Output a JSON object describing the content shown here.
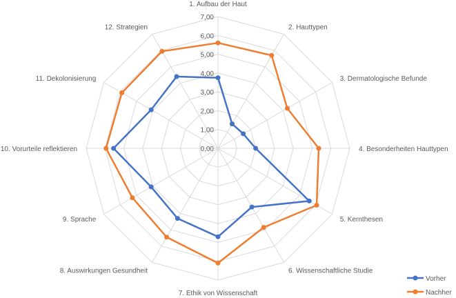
{
  "chart_data": {
    "type": "radar",
    "categories": [
      "1. Aufbau der Haut",
      "2. Hauttypen",
      "3. Dermatologische Befunde",
      "4. Besonderheiten Hauttypen",
      "5. Kernthesen",
      "6. Wissenschaftliche Studie",
      "7. Ethik von Wissenschaft",
      "8. Auswirkungen Gesundheit",
      "9. Sprache",
      "10. Vorurteile reflektieren",
      "11. Dekolonisierung",
      "12. Strategien"
    ],
    "tick_labels": [
      "0,00",
      "1,00",
      "2,00",
      "3,00",
      "4,00",
      "5,00",
      "6,00",
      "7,00"
    ],
    "range": [
      0,
      7
    ],
    "series": [
      {
        "name": "Vorher",
        "color": "#4472c4",
        "values": [
          3.75,
          1.5,
          1.55,
          2.0,
          5.6,
          3.6,
          4.7,
          4.3,
          4.1,
          5.55,
          4.1,
          4.4
        ]
      },
      {
        "name": "Nachher",
        "color": "#ed7d31",
        "values": [
          5.6,
          5.7,
          4.25,
          5.35,
          6.05,
          4.85,
          6.1,
          5.45,
          5.25,
          5.95,
          5.9,
          5.95
        ]
      }
    ],
    "legend_position": "bottom-right"
  }
}
